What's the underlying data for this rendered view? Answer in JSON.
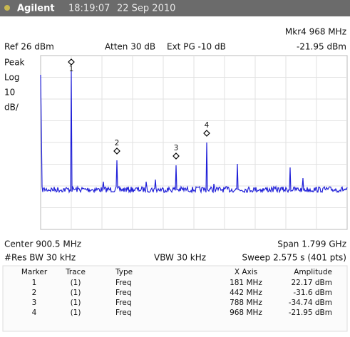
{
  "header": {
    "brand": "Agilent",
    "time": "18:19:07",
    "date": "22 Sep 2010"
  },
  "info": {
    "marker_readout": "Mkr4  968 MHz",
    "ref": "Ref 26 dBm",
    "atten": "Atten 30 dB",
    "ext": "Ext PG -10 dB",
    "marker_amplitude": "-21.95 dBm",
    "detector": "Peak",
    "scale_type": "Log",
    "scale_value": "10",
    "scale_unit": "dB/"
  },
  "footer": {
    "center": "Center 900.5 MHz",
    "span": "Span 1.799 GHz",
    "res_bw": "#Res BW 30 kHz",
    "vbw": "VBW 30 kHz",
    "sweep": "Sweep 2.575 s (401 pts)"
  },
  "table": {
    "columns": [
      "Marker",
      "Trace",
      "Type",
      "X Axis",
      "Amplitude"
    ],
    "rows": [
      [
        "1",
        "(1)",
        "Freq",
        "181 MHz",
        "22.17 dBm"
      ],
      [
        "2",
        "(1)",
        "Freq",
        "442 MHz",
        "-31.6 dBm"
      ],
      [
        "3",
        "(1)",
        "Freq",
        "788 MHz",
        "-34.74 dBm"
      ],
      [
        "4",
        "(1)",
        "Freq",
        "968 MHz",
        "-21.95 dBm"
      ]
    ]
  }
}
